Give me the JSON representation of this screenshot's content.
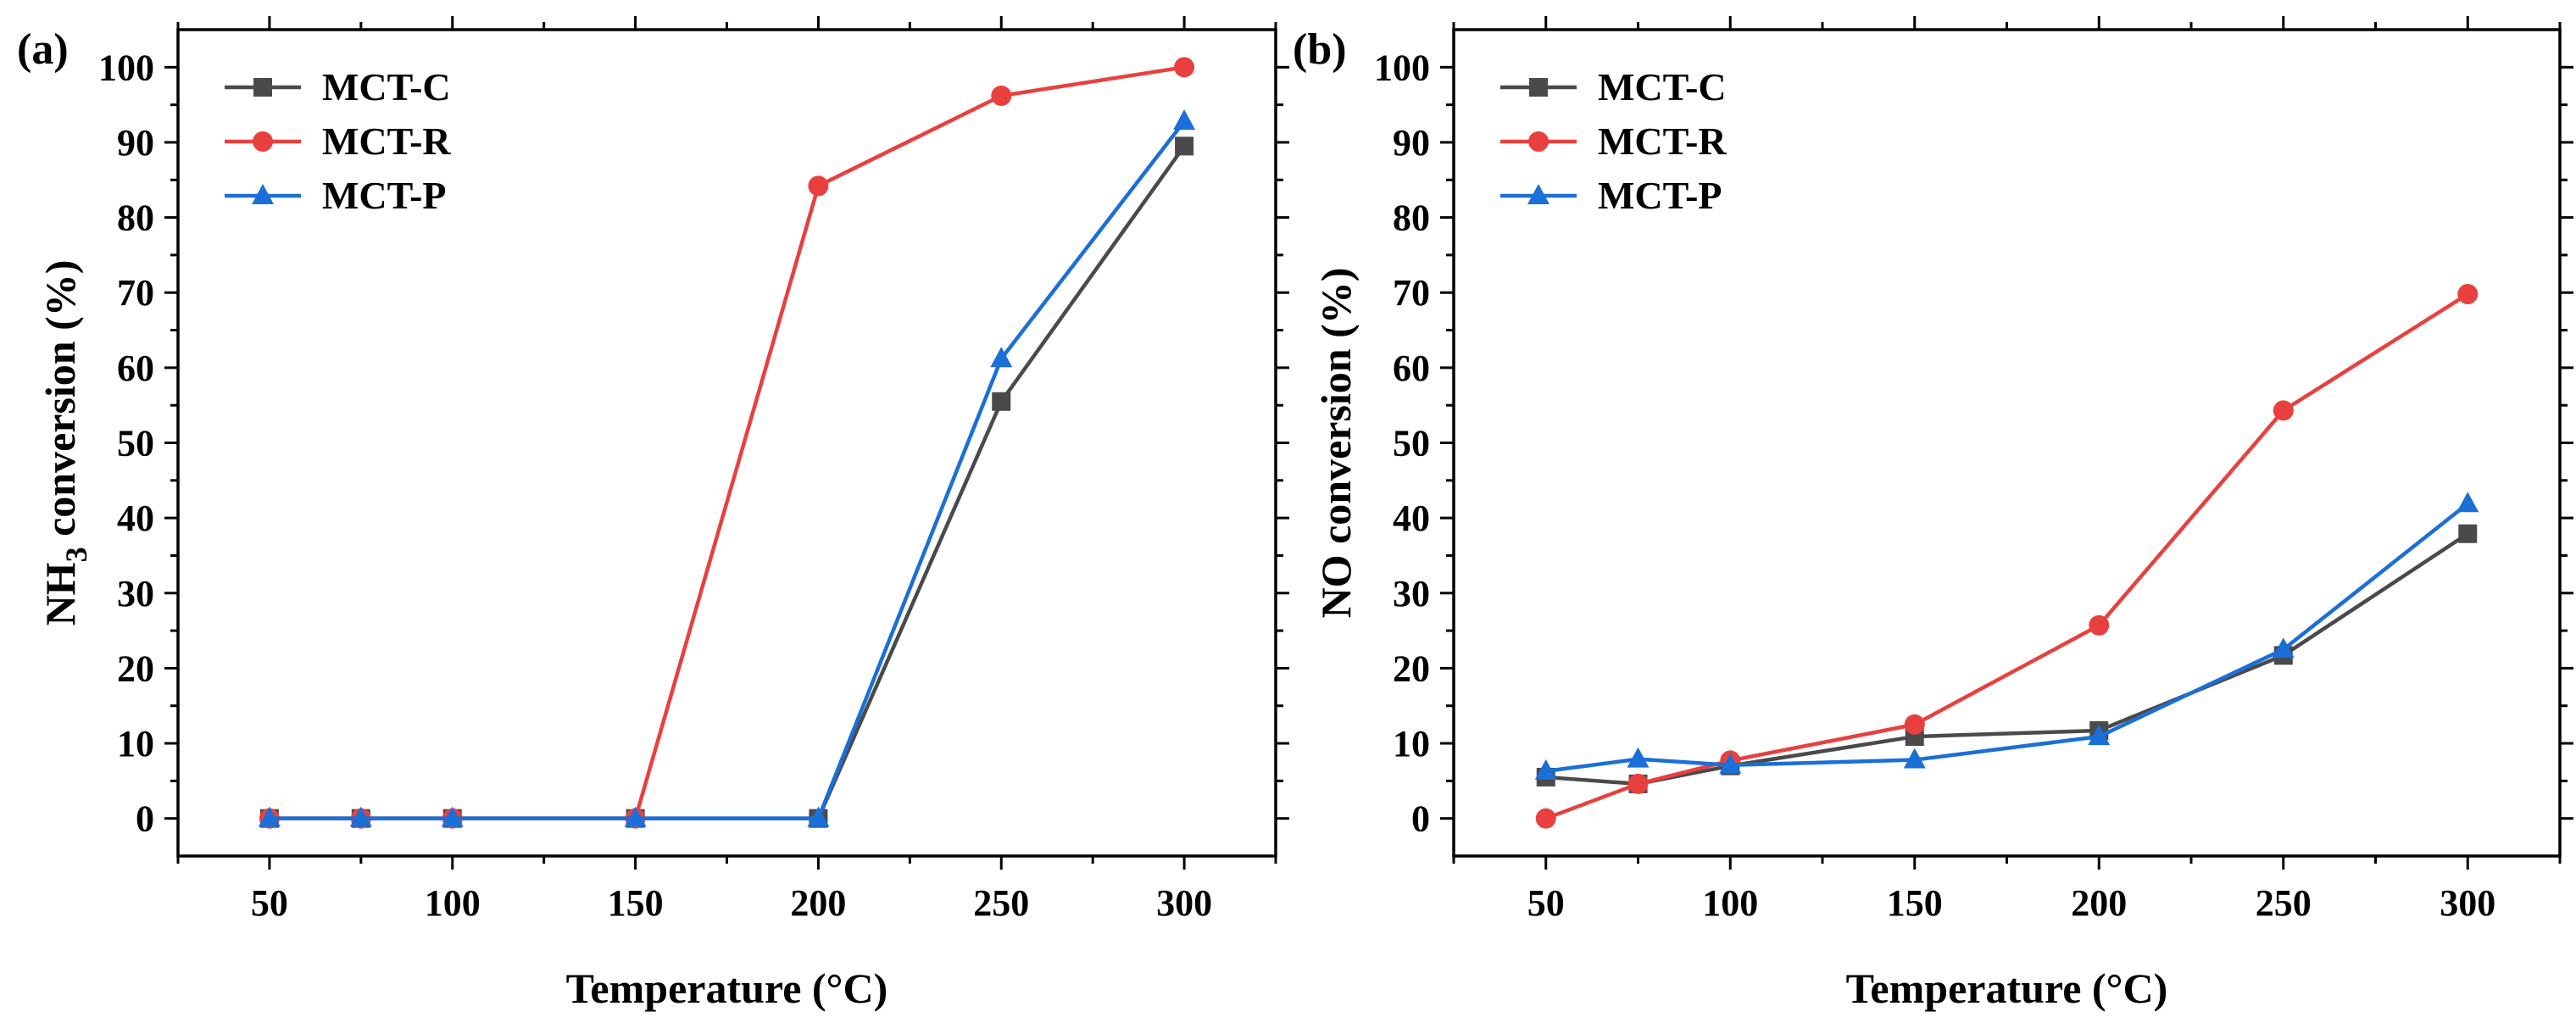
{
  "chart_data": [
    {
      "panel_label": "(a)",
      "type": "line",
      "title": "",
      "xlabel": "Temperature (°C)",
      "ylabel_main": "NH",
      "ylabel_sub": "3",
      "ylabel_rest": " conversion (%)",
      "xlim": [
        25,
        325
      ],
      "ylim": [
        -5,
        105
      ],
      "xticks": [
        50,
        100,
        150,
        200,
        250,
        300
      ],
      "yticks": [
        0,
        10,
        20,
        30,
        40,
        50,
        60,
        70,
        80,
        90,
        100
      ],
      "legend_position": "top-left",
      "x": [
        50,
        75,
        100,
        150,
        200,
        250,
        300
      ],
      "series": [
        {
          "name": "MCT-C",
          "color": "#4a4a4a",
          "marker": "square",
          "values": [
            0,
            0,
            0,
            0,
            0,
            55.5,
            89.5
          ]
        },
        {
          "name": "MCT-R",
          "color": "#e8403e",
          "marker": "circle",
          "values": [
            0,
            0,
            0,
            0,
            84.2,
            96.2,
            100
          ]
        },
        {
          "name": "MCT-P",
          "color": "#1a6fd8",
          "marker": "triangle",
          "values": [
            0,
            0,
            0,
            0,
            0,
            61.2,
            92.8
          ]
        }
      ]
    },
    {
      "panel_label": "(b)",
      "type": "line",
      "title": "",
      "xlabel": "Temperature (°C)",
      "ylabel_main": "NO conversion (%)",
      "ylabel_sub": "",
      "ylabel_rest": "",
      "xlim": [
        25,
        325
      ],
      "ylim": [
        -5,
        105
      ],
      "xticks": [
        50,
        100,
        150,
        200,
        250,
        300
      ],
      "yticks": [
        0,
        10,
        20,
        30,
        40,
        50,
        60,
        70,
        80,
        90,
        100
      ],
      "legend_position": "top-left",
      "x": [
        50,
        75,
        100,
        150,
        200,
        250,
        300
      ],
      "series": [
        {
          "name": "MCT-C",
          "color": "#4a4a4a",
          "marker": "square",
          "values": [
            5.5,
            4.6,
            7.0,
            10.9,
            11.7,
            21.7,
            37.9
          ]
        },
        {
          "name": "MCT-R",
          "color": "#e8403e",
          "marker": "circle",
          "values": [
            0,
            4.6,
            7.7,
            12.5,
            25.7,
            54.3,
            69.8
          ]
        },
        {
          "name": "MCT-P",
          "color": "#1a6fd8",
          "marker": "triangle",
          "values": [
            6.3,
            7.9,
            7.1,
            7.8,
            10.9,
            22.5,
            41.9
          ]
        }
      ]
    }
  ]
}
